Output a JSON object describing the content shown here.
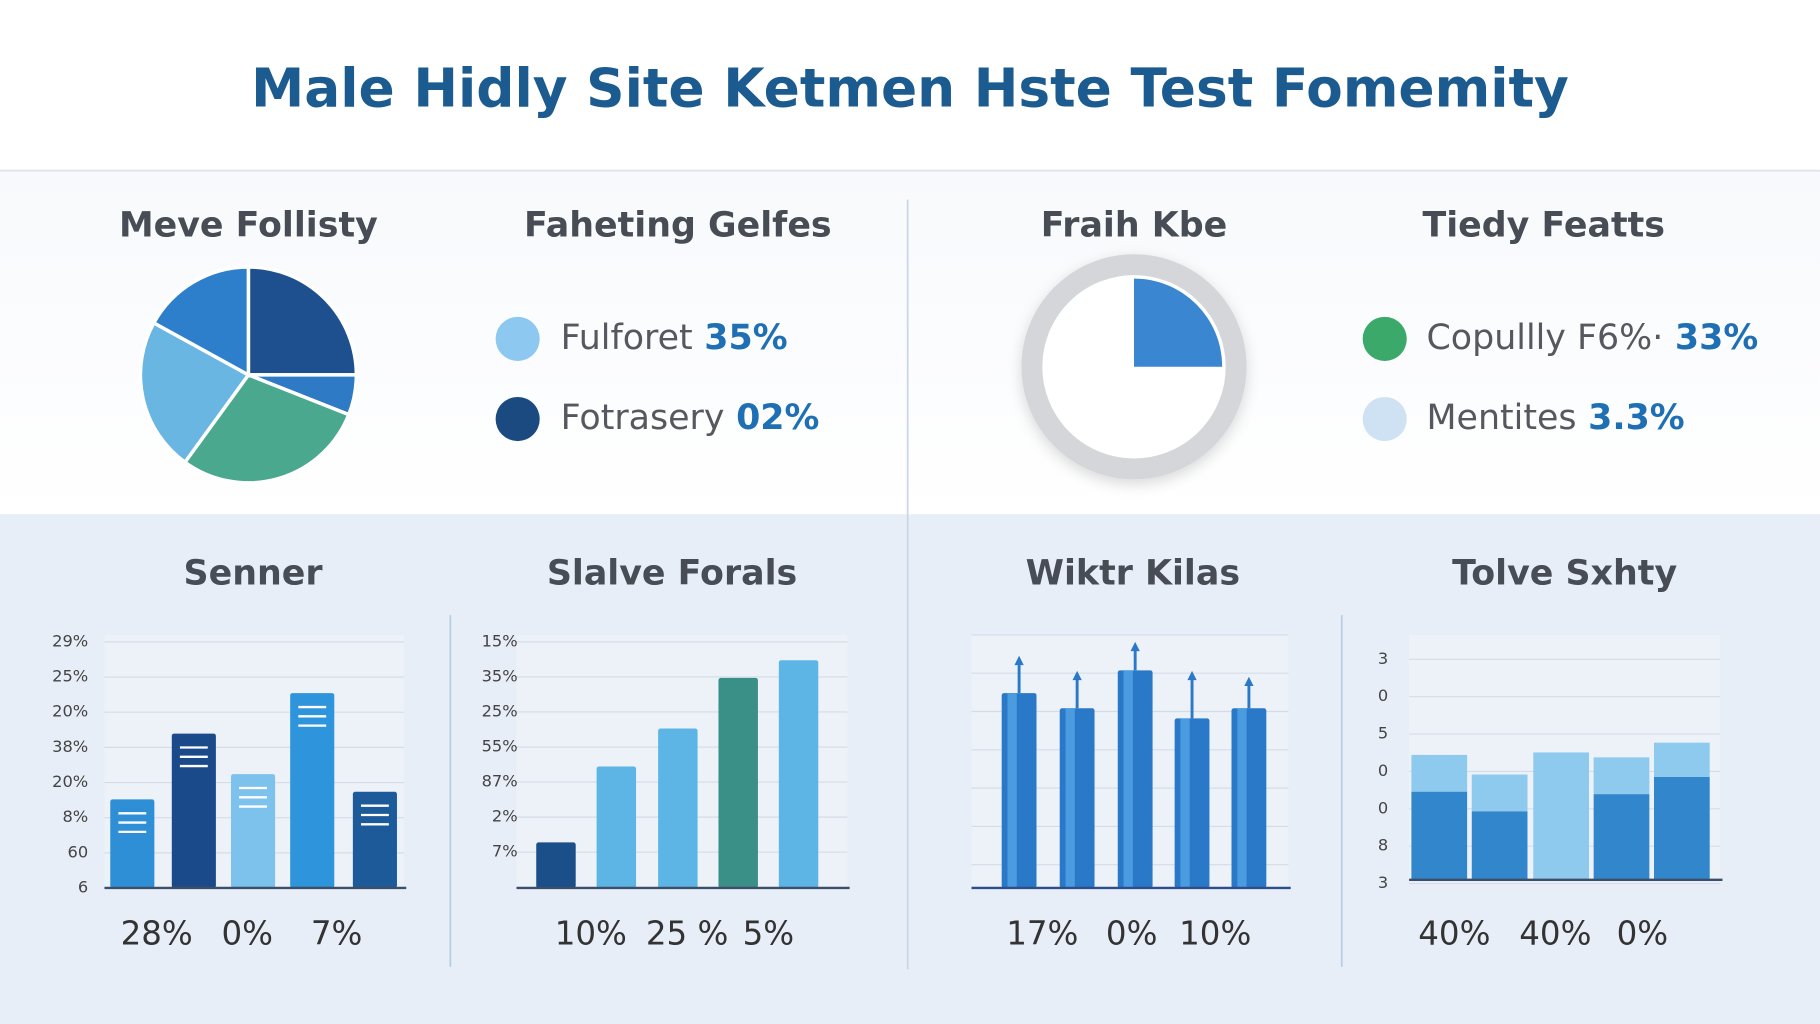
{
  "title": "Male Hidly Site Ketmen Hste Test Fomemity",
  "pie": {
    "title": "Meve Follisty",
    "ylim": [
      0,
      100
    ],
    "values": [
      25,
      6,
      29,
      23,
      17
    ],
    "colors": [
      "#1e4f8e",
      "#2f7ac4",
      "#4aa88f",
      "#69b6e3",
      "#2d7fcc"
    ]
  },
  "legend_1": {
    "title": "Faheting Gelfes",
    "items": [
      {
        "label": "Fulforet",
        "value": "35%",
        "color": "#8cc8ef"
      },
      {
        "label": "Fotrasery",
        "value": "02%",
        "color": "#1b4a80"
      }
    ]
  },
  "donut": {
    "title": "Fraih Kbe",
    "ylim": [
      0,
      100
    ],
    "value": 25,
    "color": "#3a86d0"
  },
  "legend_2": {
    "title": "Tiedy Featts",
    "items": [
      {
        "label": "Copullly F6%·",
        "value": "33%",
        "color": "#3aa96a"
      },
      {
        "label": "Mentites",
        "value": "3.3%",
        "color": "#cfe2f4"
      }
    ]
  },
  "bar_charts": [
    {
      "title": "Senner",
      "ylim": [
        0,
        100
      ],
      "axis_labels": [
        "29%",
        "25%",
        "20%",
        "38%",
        "20%",
        "8%",
        "60",
        "6"
      ],
      "values": [
        35,
        61,
        45,
        77,
        38
      ],
      "colors": [
        "#2e8fd6",
        "#1a4a8a",
        "#7cc2ec",
        "#2e95dc",
        "#1d5a99"
      ],
      "footer_labels": [
        "28%",
        "0%",
        "7%"
      ]
    },
    {
      "title": "Slalve Forals",
      "ylim": [
        0,
        100
      ],
      "axis_labels": [
        "15%",
        "35%",
        "25%",
        "55%",
        "87%",
        "2%",
        "7%"
      ],
      "values": [
        18,
        48,
        63,
        83,
        90
      ],
      "colors": [
        "#1b4f8a",
        "#5db5e6",
        "#5db5e6",
        "#3a8f86",
        "#5db5e6"
      ],
      "footer_labels": [
        "10%",
        "25 %",
        "5%"
      ]
    },
    {
      "title": "Wiktr Kilas",
      "ylim": [
        0,
        100
      ],
      "values": [
        77,
        71,
        86,
        67,
        71
      ],
      "colors": [
        "#2a78c8",
        "#2a78c8",
        "#2a78c8",
        "#2a78c8",
        "#2a78c8"
      ],
      "footer_labels": [
        "17%",
        "0%",
        "10%"
      ]
    },
    {
      "title": "Tolve Sxhty",
      "ylim": [
        0,
        100
      ],
      "axis_labels": [
        "3",
        "0",
        "5",
        "0",
        "0",
        "8",
        "3"
      ],
      "series": [
        {
          "color": "#3287cc",
          "values": [
            36,
            28,
            0,
            35,
            42
          ]
        },
        {
          "color": "#8dcaee",
          "values": [
            15,
            15,
            52,
            15,
            14
          ]
        }
      ],
      "footer_labels": [
        "40%",
        "40%",
        "0%"
      ]
    }
  ]
}
